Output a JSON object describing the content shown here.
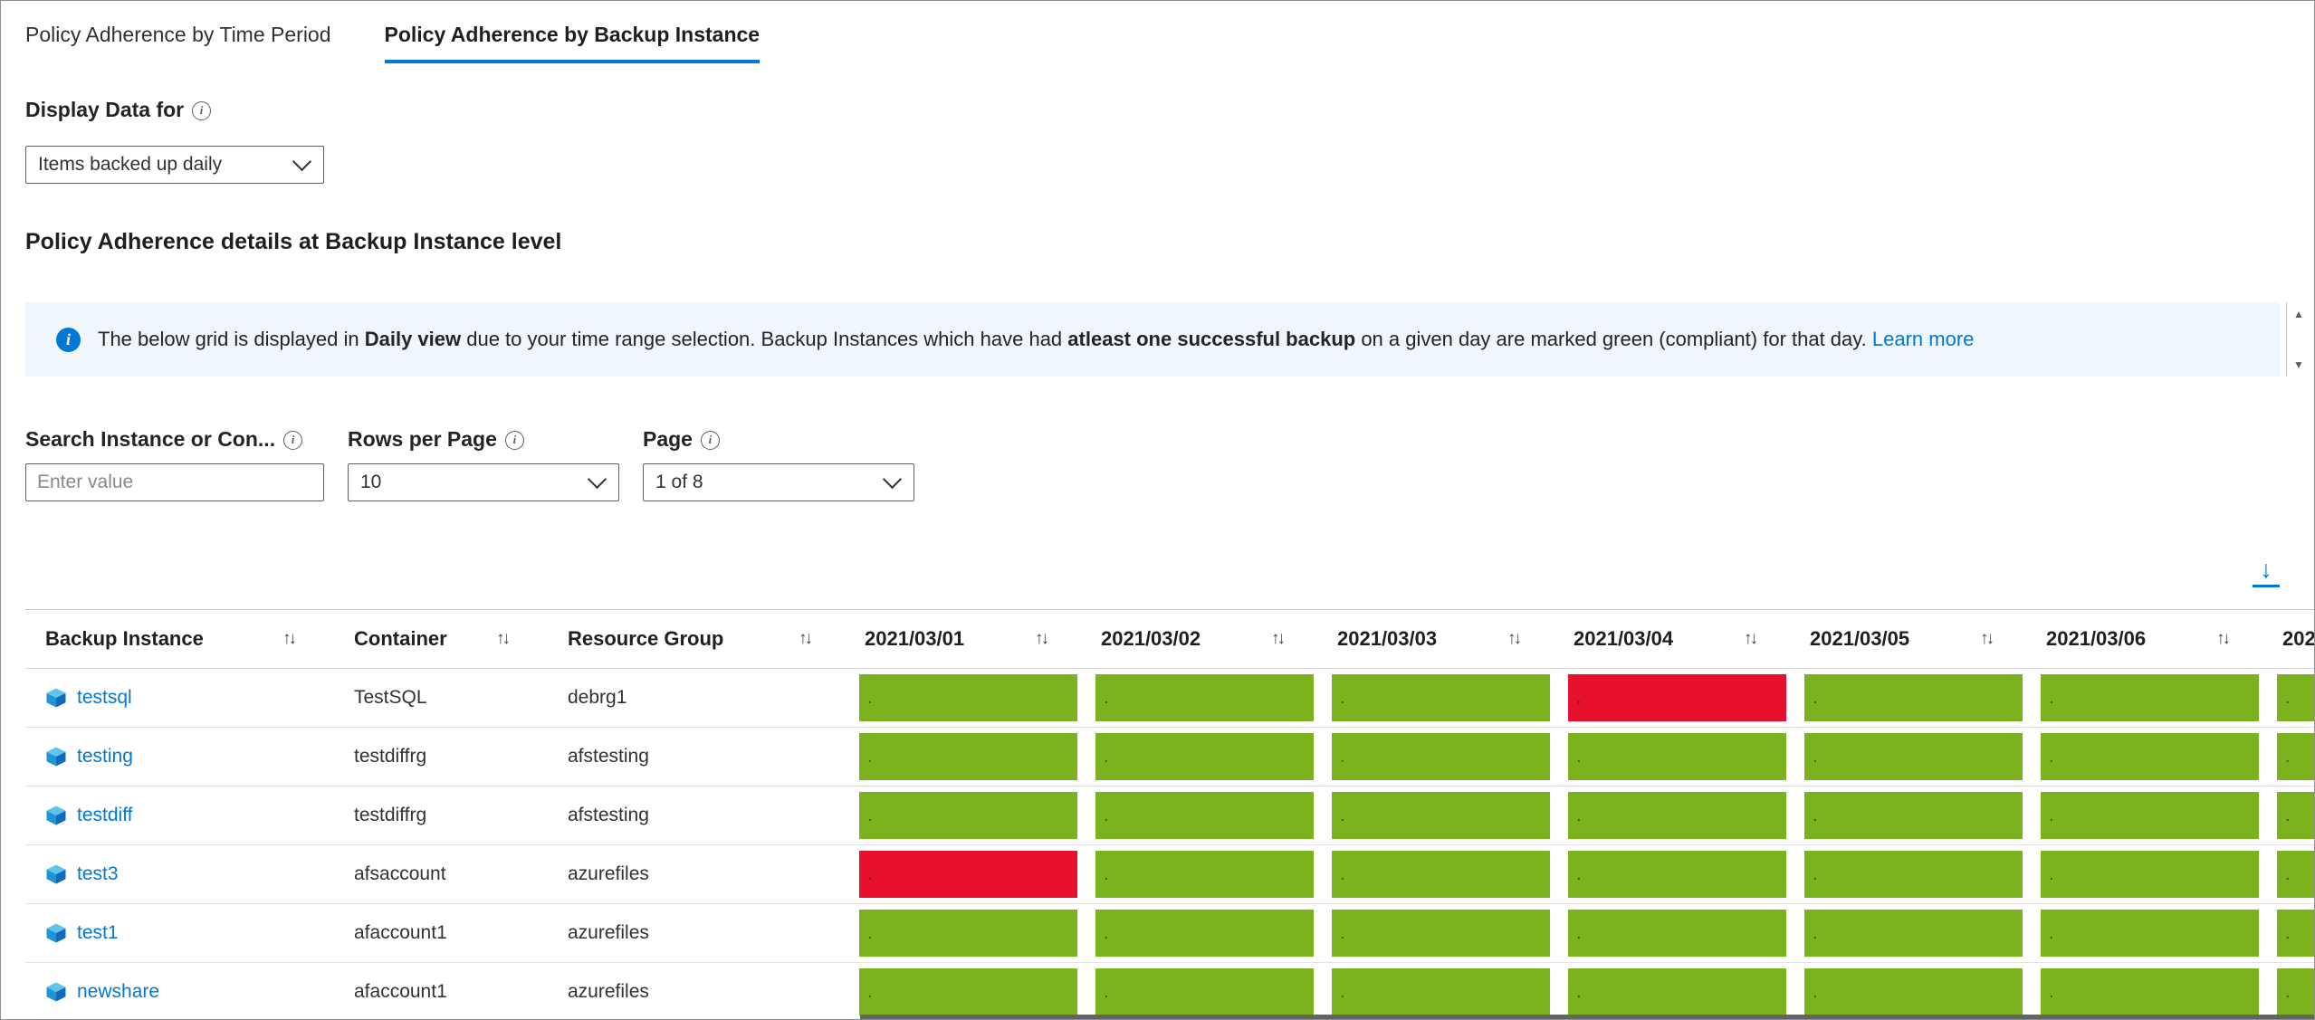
{
  "tabs": {
    "time_period": "Policy Adherence by Time Period",
    "backup_instance": "Policy Adherence by Backup Instance"
  },
  "display": {
    "label": "Display Data for",
    "value": "Items backed up daily"
  },
  "section_title": "Policy Adherence details at Backup Instance level",
  "banner": {
    "part1": "The below grid is displayed in ",
    "bold1": "Daily view",
    "part2": " due to your time range selection. Backup Instances which have had ",
    "bold2": "atleast one successful backup",
    "part3": " on a given day are marked green (compliant) for that day. ",
    "link": "Learn more"
  },
  "filters": {
    "search_label": "Search Instance or Con...",
    "search_placeholder": "Enter value",
    "rows_label": "Rows per Page",
    "rows_value": "10",
    "page_label": "Page",
    "page_value": "1 of 8"
  },
  "icons": {
    "info_glyph": "i",
    "download_glyph": "↓",
    "stepper_up": "▲",
    "stepper_down": "▼"
  },
  "colors": {
    "accent": "#0078d4",
    "green": "#7cb21e",
    "red": "#e8112d",
    "banner_bg": "#eff6fc"
  },
  "table": {
    "sort_icon": "↑↓",
    "cell_dot": ".",
    "columns": [
      {
        "label": "Backup Instance",
        "type": "text"
      },
      {
        "label": "Container",
        "type": "text"
      },
      {
        "label": "Resource Group",
        "type": "text"
      },
      {
        "label": "2021/03/01",
        "type": "status"
      },
      {
        "label": "2021/03/02",
        "type": "status"
      },
      {
        "label": "2021/03/03",
        "type": "status"
      },
      {
        "label": "2021/03/04",
        "type": "status"
      },
      {
        "label": "2021/03/05",
        "type": "status"
      },
      {
        "label": "2021/03/06",
        "type": "status"
      },
      {
        "label": "202",
        "type": "status",
        "truncated": true
      }
    ],
    "rows": [
      {
        "name": "testsql",
        "container": "TestSQL",
        "resource_group": "debrg1",
        "statuses": [
          "green",
          "green",
          "green",
          "red",
          "green",
          "green",
          "green"
        ]
      },
      {
        "name": "testing",
        "container": "testdiffrg",
        "resource_group": "afstesting",
        "statuses": [
          "green",
          "green",
          "green",
          "green",
          "green",
          "green",
          "green"
        ]
      },
      {
        "name": "testdiff",
        "container": "testdiffrg",
        "resource_group": "afstesting",
        "statuses": [
          "green",
          "green",
          "green",
          "green",
          "green",
          "green",
          "green"
        ]
      },
      {
        "name": "test3",
        "container": "afsaccount",
        "resource_group": "azurefiles",
        "statuses": [
          "red",
          "green",
          "green",
          "green",
          "green",
          "green",
          "green"
        ]
      },
      {
        "name": "test1",
        "container": "afaccount1",
        "resource_group": "azurefiles",
        "statuses": [
          "green",
          "green",
          "green",
          "green",
          "green",
          "green",
          "green"
        ]
      },
      {
        "name": "newshare",
        "container": "afaccount1",
        "resource_group": "azurefiles",
        "statuses": [
          "green",
          "green",
          "green",
          "green",
          "green",
          "green",
          "green"
        ]
      }
    ]
  }
}
